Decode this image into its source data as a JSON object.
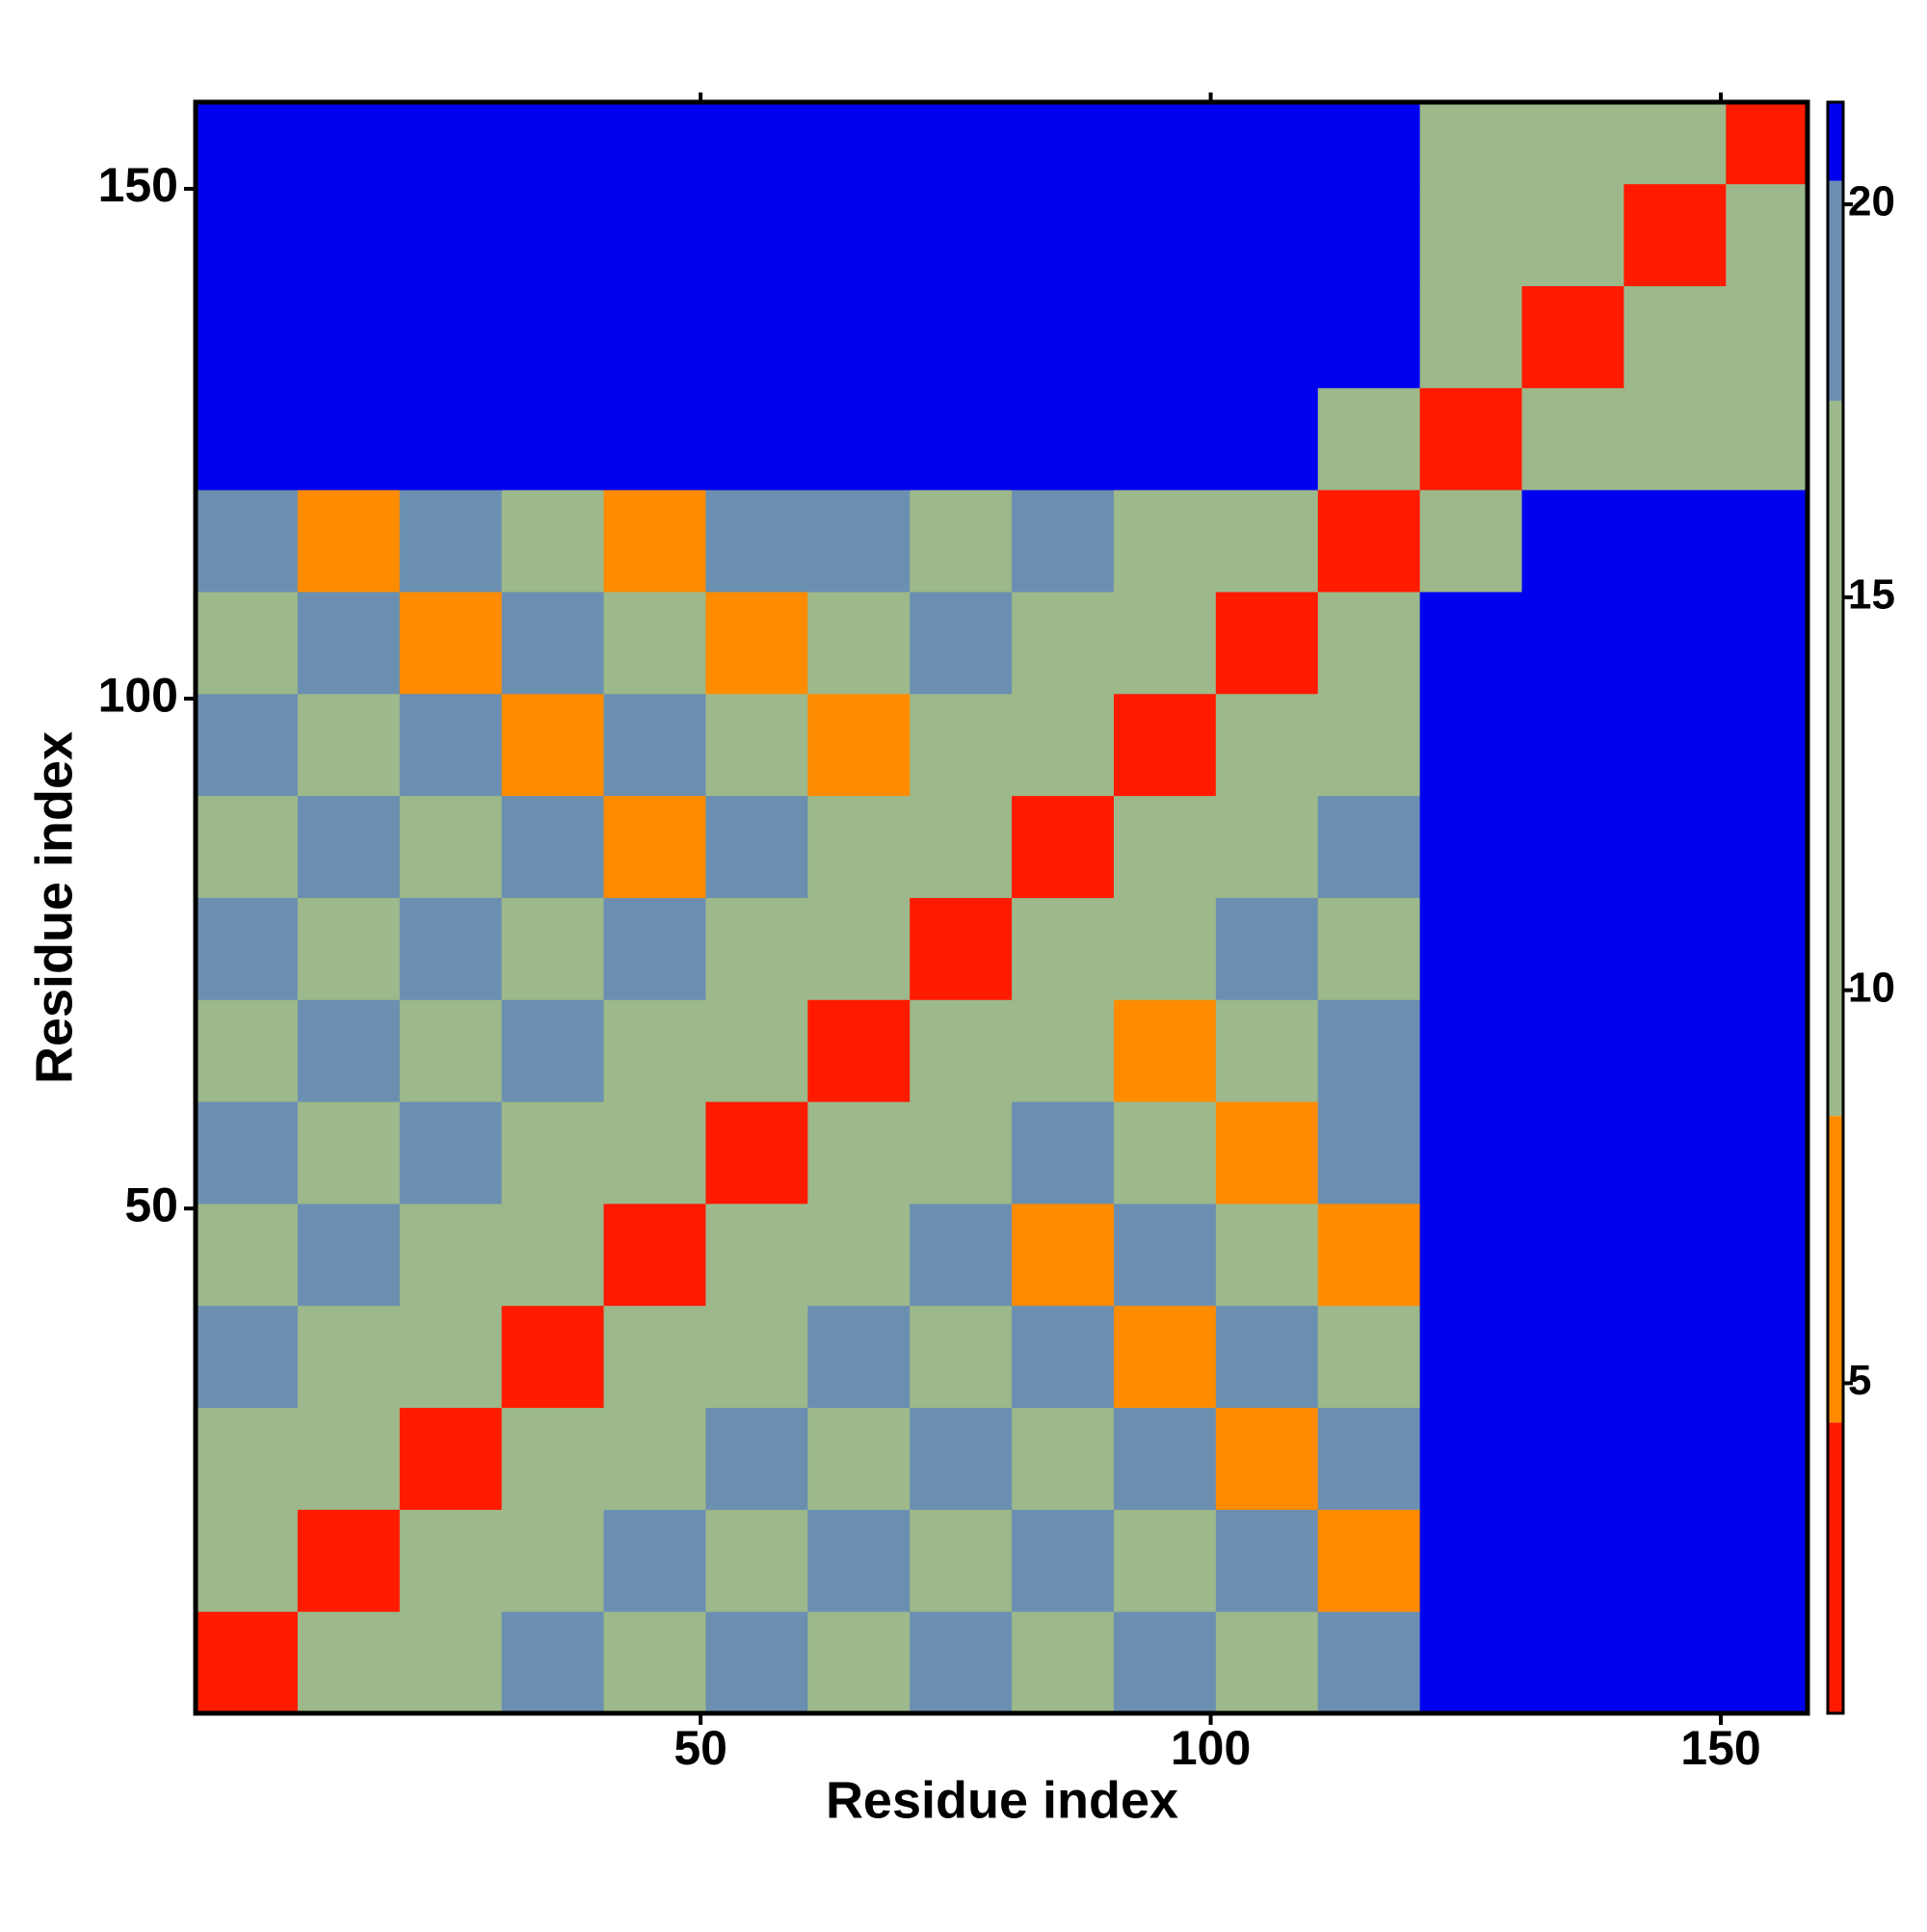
{
  "chart_data": {
    "type": "heatmap",
    "x_label": "Residue index",
    "y_label": "Residue index",
    "x_bins": [
      0.5,
      10.5,
      20.5,
      30.5,
      40.5,
      50.5,
      60.5,
      70.5,
      80.5,
      90.5,
      100.5,
      110.5,
      120.5,
      130.5,
      140.5,
      150.5,
      158.5
    ],
    "y_bins": [
      0.5,
      10.5,
      20.5,
      30.5,
      40.5,
      50.5,
      60.5,
      70.5,
      80.5,
      90.5,
      100.5,
      110.5,
      120.5,
      130.5,
      140.5,
      150.5,
      158.5
    ],
    "z": [
      [
        4,
        9,
        12,
        20,
        13,
        20,
        13,
        20,
        13,
        20,
        13,
        20,
        21,
        21,
        21,
        21
      ],
      [
        9,
        4,
        9,
        12,
        20,
        13,
        20,
        13,
        20,
        13,
        20,
        7,
        21,
        21,
        21,
        21
      ],
      [
        12,
        9,
        4,
        9,
        12,
        20,
        13,
        20,
        13,
        20,
        7,
        20,
        21,
        21,
        21,
        21
      ],
      [
        20,
        12,
        9,
        4,
        9,
        12,
        20,
        13,
        20,
        7,
        20,
        13,
        21,
        21,
        21,
        21
      ],
      [
        13,
        20,
        12,
        9,
        4,
        9,
        12,
        20,
        7,
        20,
        13,
        7,
        21,
        21,
        21,
        21
      ],
      [
        20,
        13,
        20,
        12,
        9,
        4,
        9,
        12,
        20,
        13,
        7,
        20,
        21,
        21,
        21,
        21
      ],
      [
        13,
        20,
        13,
        20,
        12,
        9,
        4,
        9,
        12,
        7,
        13,
        20,
        21,
        21,
        21,
        21
      ],
      [
        20,
        13,
        20,
        13,
        20,
        12,
        9,
        4,
        9,
        12,
        20,
        13,
        21,
        21,
        21,
        21
      ],
      [
        13,
        20,
        13,
        20,
        7,
        20,
        12,
        9,
        4,
        9,
        12,
        20,
        21,
        21,
        21,
        21
      ],
      [
        20,
        13,
        20,
        7,
        20,
        13,
        7,
        12,
        9,
        4,
        9,
        12,
        21,
        21,
        21,
        21
      ],
      [
        13,
        20,
        7,
        20,
        13,
        7,
        13,
        20,
        12,
        9,
        4,
        9,
        21,
        21,
        21,
        21
      ],
      [
        20,
        7,
        20,
        13,
        7,
        20,
        20,
        13,
        20,
        12,
        9,
        4,
        12,
        21,
        21,
        21
      ],
      [
        21,
        21,
        21,
        21,
        21,
        21,
        21,
        21,
        21,
        21,
        21,
        12,
        4,
        9,
        12,
        12
      ],
      [
        21,
        21,
        21,
        21,
        21,
        21,
        21,
        21,
        21,
        21,
        21,
        21,
        9,
        4,
        9,
        12
      ],
      [
        21,
        21,
        21,
        21,
        21,
        21,
        21,
        21,
        21,
        21,
        21,
        21,
        12,
        9,
        4,
        9
      ],
      [
        21,
        21,
        21,
        21,
        21,
        21,
        21,
        21,
        21,
        21,
        21,
        21,
        12,
        12,
        9,
        4
      ]
    ],
    "xlim": [
      0.5,
      158.5
    ],
    "ylim": [
      0.5,
      158.5
    ],
    "xticks": [
      50,
      100,
      150
    ],
    "yticks": [
      50,
      100,
      150
    ],
    "colorbar": {
      "lim": [
        0.8,
        21.3
      ],
      "ticks": [
        5,
        10,
        15,
        20
      ],
      "bands": [
        [
          0.8,
          "#ff1a00"
        ],
        [
          4.5,
          "#ff8c00"
        ],
        [
          8.4,
          "#9db88a"
        ],
        [
          17.5,
          "#6b8fb0"
        ],
        [
          20.3,
          "#0000f0"
        ]
      ]
    }
  }
}
